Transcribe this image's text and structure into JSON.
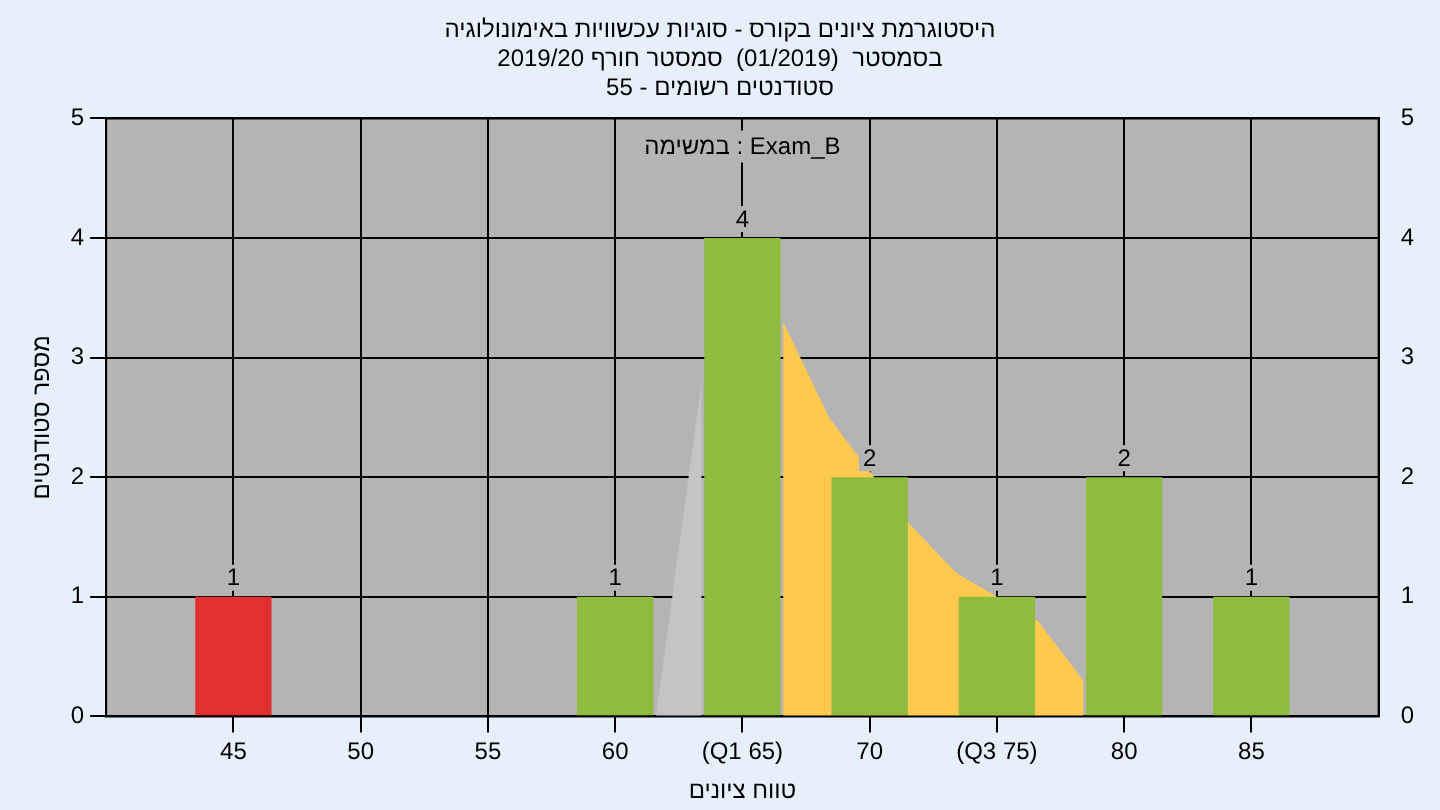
{
  "chart_data": {
    "type": "bar",
    "title": [
      "היסטוגרמת ציונים בקורס - סוגיות עכשוויות באימונולוגיה",
      "בסמסטר  (01/2019)  סמסטר חורף 2019/20",
      "סטודנטים רשומים - 55"
    ],
    "xlabel": "טווח ציונים",
    "ylabel": "מספר סטודנטים",
    "annotations": [
      "במשימה : Exam_B"
    ],
    "x": [
      45,
      50,
      55,
      60,
      65,
      70,
      75,
      80,
      85
    ],
    "series": [
      {
        "type": "area",
        "color": "#c4c4c4",
        "x": [
          61.6,
          63.4
        ],
        "values": [
          0,
          2.8
        ]
      },
      {
        "type": "area",
        "color": "#ffc94f",
        "x": [
          66.6,
          68.4,
          71.6,
          73.4,
          76.6,
          78.4
        ],
        "values": [
          3.3,
          2.5,
          1.6,
          1.2,
          0.8,
          0.3
        ]
      },
      {
        "colors": [
          "#e03030",
          "#8fbc3f",
          "#8fbc3f",
          "#8fbc3f",
          "#8fbc3f",
          "#8fbc3f",
          "#8fbc3f",
          "#8fbc3f",
          "#8fbc3f"
        ],
        "values": [
          1,
          0,
          0,
          1,
          4,
          2,
          1,
          2,
          1
        ],
        "value_labels": [
          "1",
          null,
          null,
          "1",
          "4",
          "2",
          "1",
          "2",
          "1"
        ]
      }
    ],
    "xlim": [
      40,
      90
    ],
    "xticks": [
      45,
      50,
      55,
      60,
      {
        "value": 65,
        "label": "(Q1 65)"
      },
      70,
      {
        "value": 75,
        "label": "(Q3 75)"
      },
      80,
      85
    ],
    "ylim": [
      0,
      5
    ],
    "yticks": [
      0,
      1,
      2,
      3,
      4,
      5
    ],
    "y2lim": [
      0,
      5
    ],
    "y2ticks": [
      0,
      1,
      2,
      3,
      4,
      5
    ],
    "grid": true
  }
}
